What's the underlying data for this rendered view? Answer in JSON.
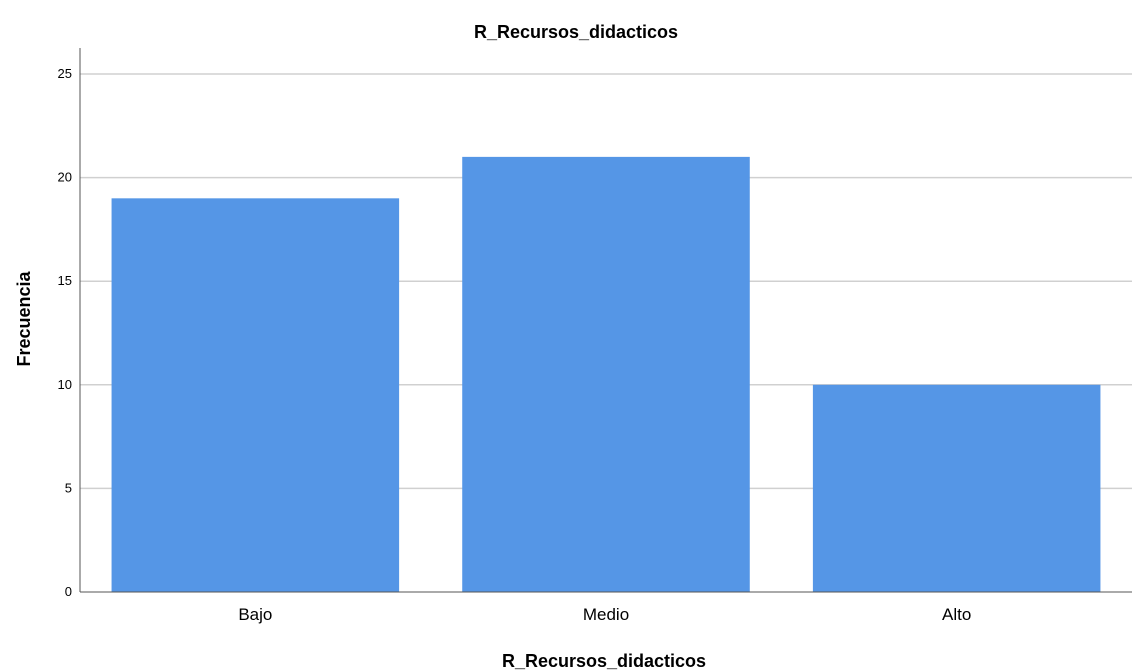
{
  "chart_data": {
    "type": "bar",
    "title": "R_Recursos_didacticos",
    "xlabel": "R_Recursos_didacticos",
    "ylabel": "Frecuencia",
    "categories": [
      "Bajo",
      "Medio",
      "Alto"
    ],
    "values": [
      19,
      21,
      10
    ],
    "ylim": [
      0,
      26
    ],
    "yticks": [
      0,
      5,
      10,
      15,
      20,
      25
    ],
    "ytick_labels": [
      "0",
      "5",
      "10",
      "15",
      "20",
      "25"
    ],
    "grid": "horizontal",
    "legend": "none",
    "bar_color": "#5596e6",
    "grid_color": "#d0d0d0",
    "axis_color": "#555555"
  }
}
